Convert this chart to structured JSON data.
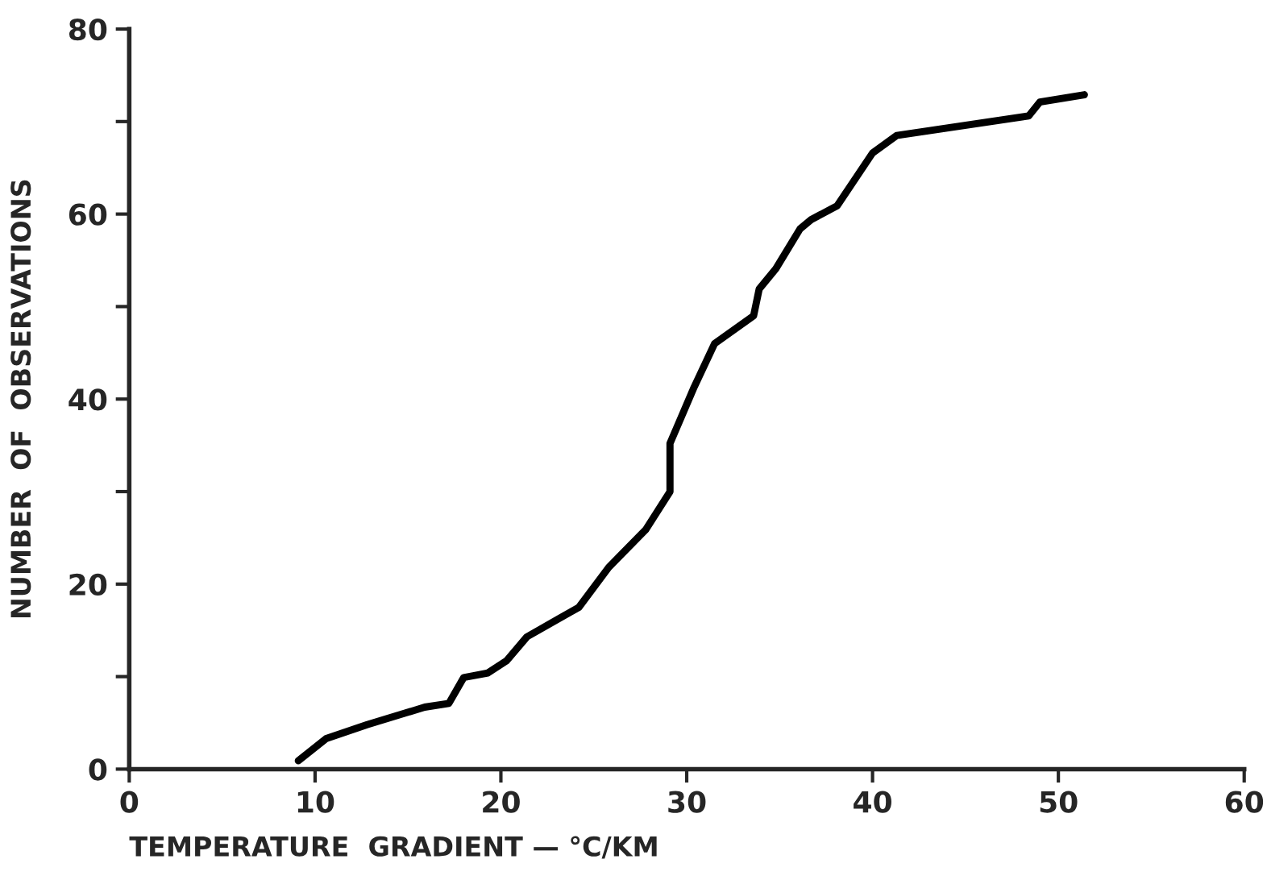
{
  "chart_data": {
    "type": "line",
    "xlabel": "TEMPERATURE  GRADIENT — °C/KM",
    "ylabel": "NUMBER  OF  OBSERVATIONS",
    "x": [
      9.1,
      10.6,
      12.8,
      15.9,
      17.2,
      18.0,
      19.3,
      20.3,
      21.4,
      24.2,
      25.8,
      27.8,
      29.1,
      29.1,
      30.4,
      31.5,
      33.6,
      33.9,
      34.8,
      36.1,
      36.7,
      38.1,
      40.0,
      41.3,
      48.4,
      49.0,
      51.4
    ],
    "series": [
      {
        "color": "#000000",
        "values": [
          0.9,
          3.3,
          4.8,
          6.7,
          7.1,
          9.9,
          10.4,
          11.7,
          14.3,
          17.5,
          21.8,
          25.9,
          30,
          35.2,
          41.3,
          46,
          49,
          51.9,
          54.1,
          58.4,
          59.4,
          60.9,
          66.6,
          68.5,
          70.6,
          72.1,
          72.9
        ]
      }
    ],
    "xlim": [
      0,
      60
    ],
    "xticks": [
      0,
      10,
      20,
      30,
      40,
      50,
      60
    ],
    "ylim": [
      0,
      80
    ],
    "yticks": [
      0,
      {
        "value": 10,
        "label": null
      },
      20,
      {
        "value": 30,
        "label": null
      },
      40,
      {
        "value": 50,
        "label": null
      },
      60,
      {
        "value": 70,
        "label": null
      },
      80
    ],
    "grid": false,
    "legend": false,
    "marker": "none",
    "line_style": "solid"
  }
}
